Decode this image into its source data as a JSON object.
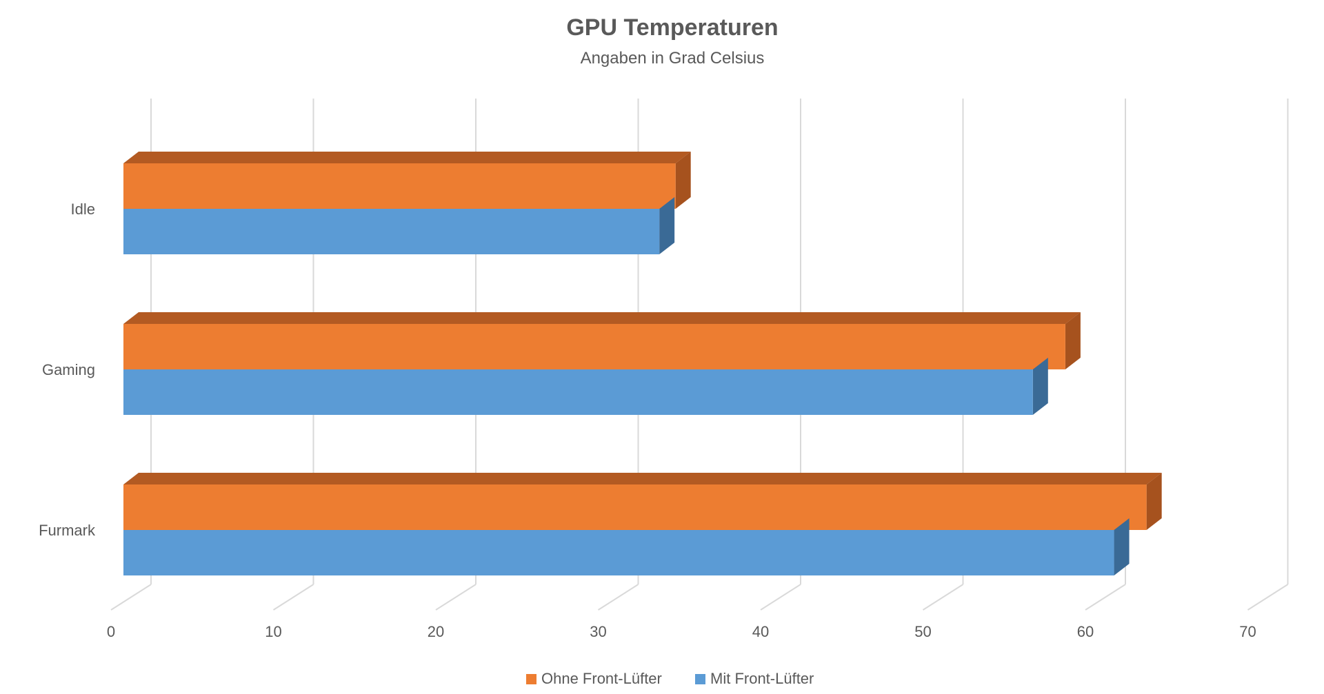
{
  "chart_data": {
    "type": "bar",
    "orientation": "horizontal",
    "style": "3d-clustered",
    "title": "GPU Temperaturen",
    "subtitle": "Angaben in Grad Celsius",
    "categories": [
      "Idle",
      "Gaming",
      "Furmark"
    ],
    "series": [
      {
        "name": "Ohne Front-Lüfter",
        "values": [
          34,
          58,
          63
        ],
        "color": "#ED7D31",
        "side_color": "#A6521E",
        "top_color": "#B35A22"
      },
      {
        "name": "Mit Front-Lüfter",
        "values": [
          33,
          56,
          61
        ],
        "color": "#5B9BD5",
        "side_color": "#3A6A96",
        "top_color": "#4A82B5"
      }
    ],
    "x_ticks": [
      "0",
      "10",
      "20",
      "30",
      "40",
      "50",
      "60",
      "70"
    ],
    "xlim": [
      0,
      70
    ],
    "grid": true,
    "legend_position": "bottom"
  }
}
